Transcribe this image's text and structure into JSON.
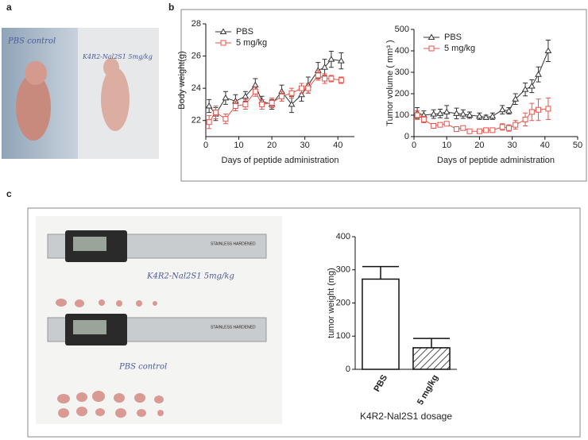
{
  "panels": [
    "a",
    "b",
    "c"
  ],
  "photos": {
    "mouse_left": "PBS  control",
    "mouse_right": "K4R2-Nal2S1  5mg/kg",
    "tumor_top": "K4R2-Nal2S1  5mg/kg",
    "tumor_bottom": "PBS  control",
    "caliper": "STAINLESS HARDENED"
  },
  "chart_data": [
    {
      "type": "line",
      "ylabel": "Body weight(g)",
      "xlabel": "Days of peptide administration",
      "xlim": [
        0,
        45
      ],
      "xticks": [
        0,
        10,
        20,
        30,
        40
      ],
      "ylim": [
        21,
        28
      ],
      "yticks": [
        22,
        24,
        26,
        28
      ],
      "legend": "upper left",
      "series": [
        {
          "name": "PBS",
          "color": "#333333",
          "marker": "triangle",
          "x": [
            1,
            3,
            6,
            9,
            12,
            15,
            17,
            20,
            23,
            26,
            29,
            31,
            34,
            36,
            38,
            41
          ],
          "values": [
            22.9,
            22.4,
            23.4,
            23.2,
            23.5,
            24.2,
            23.2,
            23.0,
            23.8,
            23.0,
            23.6,
            24.2,
            25.1,
            25.3,
            25.8,
            25.7
          ],
          "errors": [
            0.4,
            0.4,
            0.4,
            0.4,
            0.3,
            0.4,
            0.3,
            0.3,
            0.4,
            0.5,
            0.4,
            0.5,
            0.5,
            0.5,
            0.5,
            0.5
          ]
        },
        {
          "name": "5 mg/kg",
          "color": "#e8534a",
          "marker": "square",
          "x": [
            1,
            3,
            6,
            9,
            12,
            15,
            17,
            20,
            23,
            26,
            29,
            31,
            34,
            36,
            38,
            41
          ],
          "values": [
            21.9,
            22.5,
            22.1,
            22.9,
            23.0,
            23.8,
            23.0,
            23.1,
            23.5,
            23.7,
            24.0,
            24.0,
            24.8,
            24.6,
            24.6,
            24.5
          ],
          "errors": [
            0.4,
            0.4,
            0.3,
            0.3,
            0.3,
            0.3,
            0.3,
            0.3,
            0.3,
            0.3,
            0.3,
            0.3,
            0.3,
            0.3,
            0.2,
            0.2
          ]
        }
      ]
    },
    {
      "type": "line",
      "ylabel": "Tumor volume ( mm³ )",
      "xlabel": "Days of peptide administration",
      "xlim": [
        0,
        50
      ],
      "xticks": [
        0,
        10,
        20,
        30,
        40,
        50
      ],
      "ylim": [
        0,
        500
      ],
      "yticks": [
        0,
        100,
        200,
        300,
        400,
        500
      ],
      "legend": "upper left",
      "series": [
        {
          "name": "PBS",
          "color": "#333333",
          "marker": "triangle",
          "x": [
            1,
            3,
            6,
            8,
            10,
            13,
            15,
            17,
            20,
            22,
            24,
            27,
            29,
            31,
            34,
            36,
            38,
            41
          ],
          "values": [
            110,
            100,
            105,
            108,
            115,
            108,
            105,
            100,
            95,
            90,
            95,
            125,
            120,
            175,
            220,
            235,
            290,
            400
          ],
          "errors": [
            25,
            20,
            20,
            20,
            30,
            25,
            20,
            15,
            15,
            10,
            15,
            20,
            15,
            25,
            30,
            30,
            35,
            50
          ]
        },
        {
          "name": "5 mg/kg",
          "color": "#e8534a",
          "marker": "square",
          "x": [
            1,
            3,
            6,
            8,
            10,
            13,
            15,
            17,
            20,
            22,
            24,
            27,
            29,
            31,
            34,
            36,
            38,
            41
          ],
          "values": [
            100,
            80,
            50,
            55,
            60,
            35,
            40,
            25,
            25,
            30,
            30,
            45,
            40,
            55,
            80,
            115,
            125,
            130
          ],
          "errors": [
            20,
            15,
            10,
            10,
            10,
            10,
            10,
            10,
            10,
            10,
            10,
            15,
            15,
            20,
            30,
            40,
            50,
            50
          ]
        }
      ]
    },
    {
      "type": "bar",
      "ylabel": "tumor weight (mg)",
      "xlabel": "K4R2-Nal2S1 dosage",
      "categories": [
        "PBS",
        "5 mg/kg"
      ],
      "values": [
        272,
        65
      ],
      "errors": [
        38,
        28
      ],
      "hatch": [
        false,
        true
      ],
      "color": "#ffffff",
      "edgecolor": "#111111",
      "ylim": [
        0,
        400
      ],
      "yticks": [
        0,
        100,
        200,
        300,
        400
      ]
    }
  ]
}
